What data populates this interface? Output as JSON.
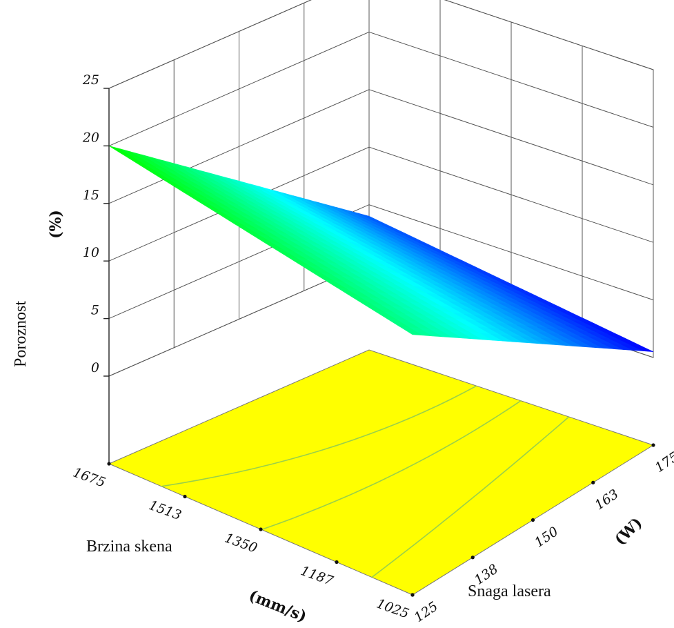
{
  "chart_data": {
    "type": "surface3d",
    "zlabel_word": "Poroznost",
    "zlabel_unit": "(%)",
    "zticks": [
      "0",
      "5",
      "10",
      "15",
      "20",
      "25"
    ],
    "zlim": [
      0,
      25
    ],
    "x_axis": {
      "name": "Brzina skena",
      "unit": "(mm/s)",
      "ticks": [
        "1675",
        "1513",
        "1350",
        "1187",
        "1025"
      ],
      "range": [
        1675,
        1025
      ]
    },
    "y_axis": {
      "name": "Snaga lasera",
      "unit": "(W)",
      "ticks": [
        "125",
        "138",
        "150",
        "163",
        "175"
      ],
      "range": [
        125,
        175
      ]
    },
    "corner_values": [
      {
        "scan_speed": 1675,
        "laser_power": 125,
        "porosity": 20
      },
      {
        "scan_speed": 1025,
        "laser_power": 125,
        "porosity": 15
      },
      {
        "scan_speed": 1675,
        "laser_power": 175,
        "porosity": 4
      },
      {
        "scan_speed": 1025,
        "laser_power": 175,
        "porosity": 0.5
      }
    ],
    "floor_color": "#ffff00",
    "colormap": [
      "#0000ff",
      "#00ffff",
      "#00ff00"
    ],
    "grid": true
  }
}
